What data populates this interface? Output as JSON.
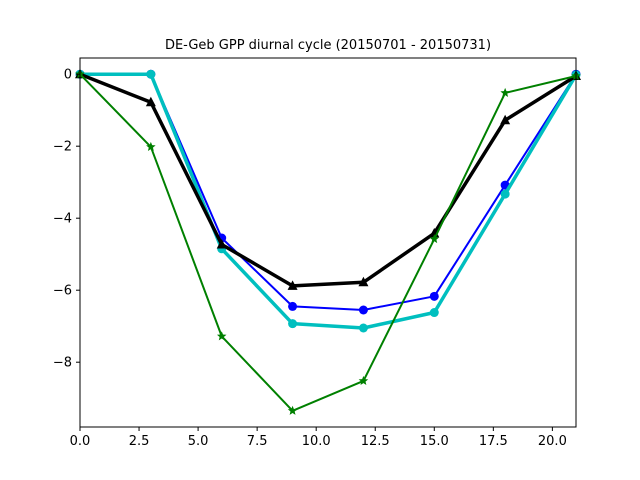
{
  "chart_data": {
    "type": "line",
    "title": "DE-Geb GPP diurnal cycle (20150701 - 20150731)",
    "xlabel": "",
    "ylabel": "",
    "xlim": [
      0,
      21
    ],
    "ylim": [
      -9.8,
      0.45
    ],
    "xticks": [
      0.0,
      2.5,
      5.0,
      7.5,
      10.0,
      12.5,
      15.0,
      17.5,
      20.0
    ],
    "xtick_labels": [
      "0.0",
      "2.5",
      "5.0",
      "7.5",
      "10.0",
      "12.5",
      "15.0",
      "17.5",
      "20.0"
    ],
    "yticks": [
      0,
      -2,
      -4,
      -6,
      -8
    ],
    "ytick_labels": [
      "0",
      "−2",
      "−4",
      "−6",
      "−8"
    ],
    "grid": false,
    "x": [
      0,
      3,
      6,
      9,
      12,
      15,
      18,
      21
    ],
    "series": [
      {
        "color": "#0000ff",
        "marker": "circle",
        "linewidth": 2,
        "values": [
          0.0,
          0.0,
          -4.55,
          -6.45,
          -6.55,
          -6.17,
          -3.08,
          0.0
        ]
      },
      {
        "color": "#00bfbf",
        "marker": "circle",
        "linewidth": 3.5,
        "values": [
          0.0,
          0.0,
          -4.85,
          -6.93,
          -7.05,
          -6.62,
          -3.33,
          -0.02
        ]
      },
      {
        "color": "#000000",
        "marker": "triangle",
        "linewidth": 3.5,
        "values": [
          0.0,
          -0.78,
          -4.73,
          -5.88,
          -5.78,
          -4.42,
          -1.28,
          -0.05
        ]
      },
      {
        "color": "#008000",
        "marker": "star",
        "linewidth": 2,
        "values": [
          0.0,
          -2.02,
          -7.28,
          -9.35,
          -8.52,
          -4.58,
          -0.52,
          -0.05
        ]
      }
    ]
  }
}
